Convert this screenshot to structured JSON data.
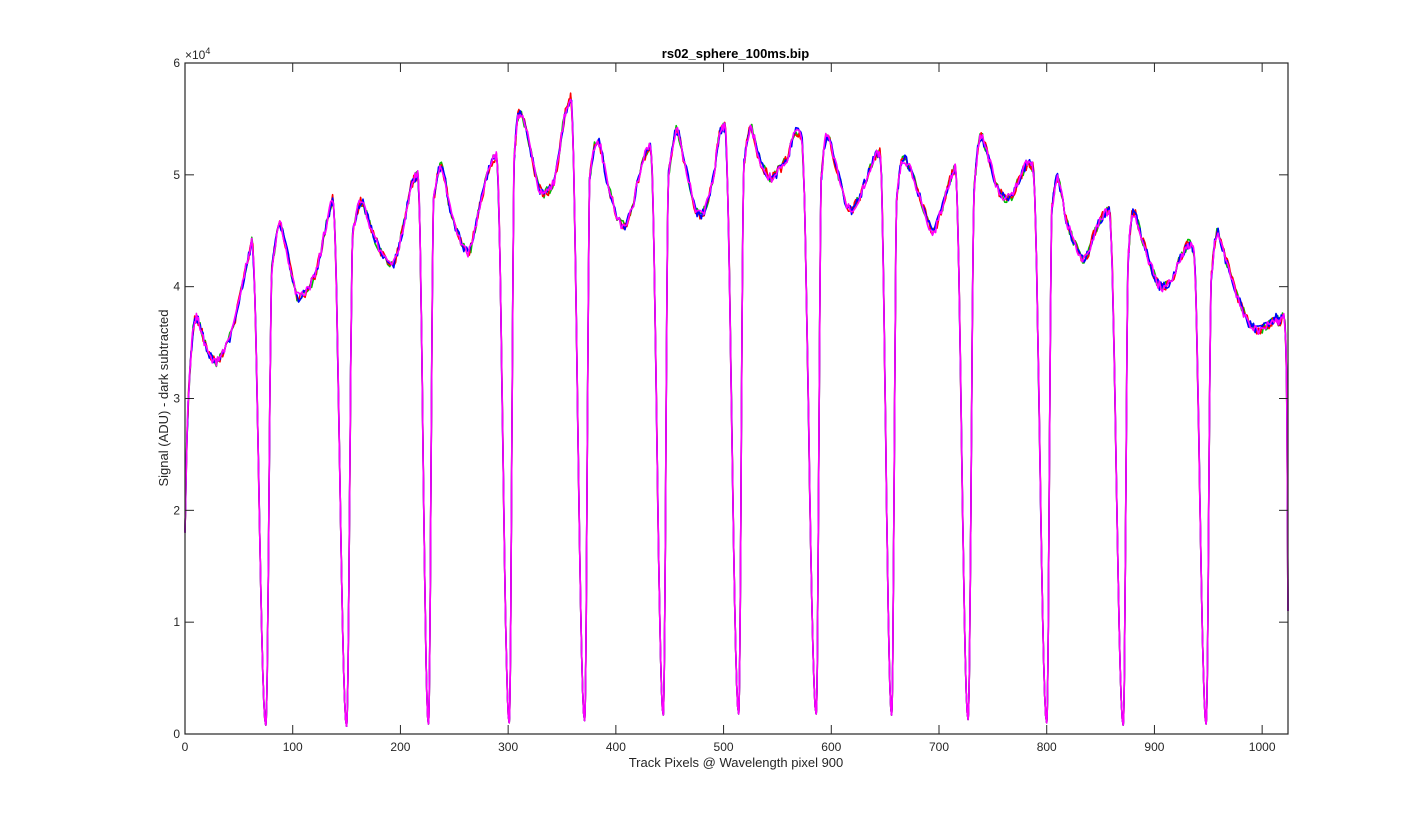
{
  "chart_data": {
    "type": "line",
    "title": "rs02_sphere_100ms.bip",
    "xlabel": "Track Pixels @ Wavelength pixel 900",
    "ylabel": "Signal (ADU) - dark subtracted",
    "y_exponent_label": "×10",
    "y_exponent_power": "4",
    "xlim": [
      0,
      1024
    ],
    "ylim": [
      0,
      60000
    ],
    "grid": false,
    "xticks": [
      0,
      100,
      200,
      300,
      400,
      500,
      600,
      700,
      800,
      900,
      1000
    ],
    "xtick_labels": [
      "0",
      "100",
      "200",
      "300",
      "400",
      "500",
      "600",
      "700",
      "800",
      "900",
      "1000"
    ],
    "yticks": [
      0,
      10000,
      20000,
      30000,
      40000,
      50000,
      60000
    ],
    "ytick_labels": [
      "0",
      "1",
      "2",
      "3",
      "4",
      "5",
      "6"
    ],
    "series_colors": [
      "#00c000",
      "#ff0000",
      "#0000ff",
      "#ff00ff"
    ],
    "profile": {
      "start": [
        [
          0,
          18000
        ],
        [
          2,
          27000
        ],
        [
          5,
          33000
        ],
        [
          9,
          37000
        ],
        [
          14,
          36500
        ],
        [
          20,
          34500
        ],
        [
          28,
          33300
        ],
        [
          35,
          34000
        ],
        [
          45,
          36500
        ],
        [
          55,
          41000
        ],
        [
          62,
          44000
        ]
      ],
      "end": [
        [
          1022,
          35000
        ],
        [
          1024,
          11000
        ]
      ],
      "segments": [
        {
          "rise": 70,
          "min_x": 75,
          "min_y": 800,
          "fall": 81,
          "pts": [
            [
              81,
              42000
            ],
            [
              88,
              45500
            ],
            [
              96,
              42500
            ],
            [
              104,
              39200
            ],
            [
              113,
              39600
            ],
            [
              122,
              41500
            ],
            [
              130,
              45000
            ],
            [
              137,
              48000
            ]
          ]
        },
        {
          "rise": 144,
          "min_x": 150,
          "min_y": 700,
          "fall": 156,
          "pts": [
            [
              156,
              45000
            ],
            [
              163,
              47600
            ],
            [
              170,
              46000
            ],
            [
              180,
              43500
            ],
            [
              192,
              41800
            ],
            [
              202,
              45000
            ],
            [
              210,
              49000
            ],
            [
              216,
              50000
            ]
          ]
        },
        {
          "rise": 221,
          "min_x": 226,
          "min_y": 900,
          "fall": 231,
          "pts": [
            [
              231,
              48000
            ],
            [
              238,
              50800
            ],
            [
              246,
              47000
            ],
            [
              256,
              44200
            ],
            [
              264,
              43200
            ],
            [
              272,
              46500
            ],
            [
              282,
              50500
            ],
            [
              289,
              51800
            ]
          ]
        },
        {
          "rise": 296,
          "min_x": 301,
          "min_y": 1000,
          "fall": 306,
          "pts": [
            [
              306,
              52000
            ],
            [
              310,
              55500
            ],
            [
              318,
              53500
            ],
            [
              328,
              49000
            ],
            [
              336,
              48500
            ],
            [
              344,
              50000
            ],
            [
              352,
              55000
            ],
            [
              358,
              57000
            ]
          ]
        },
        {
          "rise": 366,
          "min_x": 371,
          "min_y": 1200,
          "fall": 376,
          "pts": [
            [
              376,
              50000
            ],
            [
              383,
              53200
            ],
            [
              393,
              49000
            ],
            [
              405,
              45500
            ],
            [
              415,
              47000
            ],
            [
              424,
              51000
            ],
            [
              432,
              52500
            ]
          ]
        },
        {
          "rise": 439,
          "min_x": 444,
          "min_y": 1700,
          "fall": 449,
          "pts": [
            [
              449,
              50000
            ],
            [
              456,
              54000
            ],
            [
              464,
              51000
            ],
            [
              474,
              47000
            ],
            [
              482,
              46800
            ],
            [
              490,
              49500
            ],
            [
              496,
              53500
            ],
            [
              501,
              54300
            ]
          ]
        },
        {
          "rise": 509,
          "min_x": 514,
          "min_y": 1800,
          "fall": 519,
          "pts": [
            [
              519,
              51000
            ],
            [
              525,
              54200
            ],
            [
              533,
              51500
            ],
            [
              543,
              49800
            ],
            [
              552,
              50500
            ],
            [
              560,
              51800
            ],
            [
              566,
              53800
            ],
            [
              572,
              53500
            ]
          ]
        },
        {
          "rise": 581,
          "min_x": 586,
          "min_y": 1800,
          "fall": 591,
          "pts": [
            [
              591,
              50000
            ],
            [
              596,
              53500
            ],
            [
              605,
              50500
            ],
            [
              616,
              47000
            ],
            [
              624,
              47600
            ],
            [
              632,
              49500
            ],
            [
              640,
              51500
            ],
            [
              645,
              52000
            ]
          ]
        },
        {
          "rise": 651,
          "min_x": 656,
          "min_y": 1700,
          "fall": 661,
          "pts": [
            [
              661,
              48000
            ],
            [
              666,
              51300
            ],
            [
              674,
              50300
            ],
            [
              684,
              47500
            ],
            [
              694,
              45000
            ],
            [
              702,
              46800
            ],
            [
              710,
              49500
            ],
            [
              715,
              50600
            ]
          ]
        },
        {
          "rise": 721,
          "min_x": 727,
          "min_y": 1300,
          "fall": 733,
          "pts": [
            [
              733,
              49000
            ],
            [
              738,
              53400
            ],
            [
              746,
              51500
            ],
            [
              756,
              48500
            ],
            [
              766,
              48000
            ],
            [
              774,
              49500
            ],
            [
              782,
              51000
            ],
            [
              787,
              50700
            ]
          ]
        },
        {
          "rise": 795,
          "min_x": 800,
          "min_y": 1000,
          "fall": 805,
          "pts": [
            [
              805,
              47000
            ],
            [
              810,
              49800
            ],
            [
              818,
              46000
            ],
            [
              828,
              43500
            ],
            [
              836,
              42500
            ],
            [
              845,
              45000
            ],
            [
              853,
              46500
            ],
            [
              858,
              46800
            ]
          ]
        },
        {
          "rise": 866,
          "min_x": 871,
          "min_y": 800,
          "fall": 876,
          "pts": [
            [
              876,
              43000
            ],
            [
              880,
              46700
            ],
            [
              888,
              44500
            ],
            [
              898,
              41500
            ],
            [
              906,
              40000
            ],
            [
              915,
              40500
            ],
            [
              924,
              42500
            ],
            [
              931,
              43800
            ],
            [
              936,
              43300
            ]
          ]
        },
        {
          "rise": 943,
          "min_x": 948,
          "min_y": 900,
          "fall": 953,
          "pts": [
            [
              953,
              41000
            ],
            [
              958,
              44800
            ],
            [
              966,
              42500
            ],
            [
              976,
              39500
            ],
            [
              986,
              37000
            ],
            [
              995,
              36200
            ],
            [
              1005,
              36500
            ],
            [
              1012,
              37200
            ],
            [
              1016,
              36800
            ]
          ]
        }
      ]
    }
  }
}
